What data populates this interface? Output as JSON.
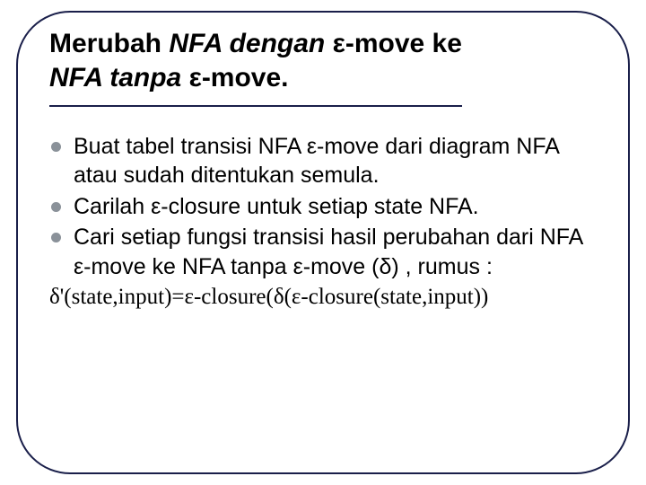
{
  "title": {
    "part1": "Merubah ",
    "part2": "NFA dengan ",
    "part3": "ε-move ke ",
    "part4": "NFA tanpa ",
    "part5": "ε-move."
  },
  "bullets": {
    "b1": "Buat tabel transisi NFA ε-move  dari diagram NFA atau sudah ditentukan semula.",
    "b2": "Carilah ε-closure untuk setiap state NFA.",
    "b3": "Cari setiap fungsi transisi hasil perubahan dari NFA ε-move ke NFA tanpa ε-move (δ) , rumus :"
  },
  "formula": "δ'(state,input)=ε-closure(δ(ε-closure(state,input))",
  "colors": {
    "border": "#1a1f4a",
    "bullet": "#8a9199",
    "text": "#000000",
    "background": "#ffffff"
  }
}
